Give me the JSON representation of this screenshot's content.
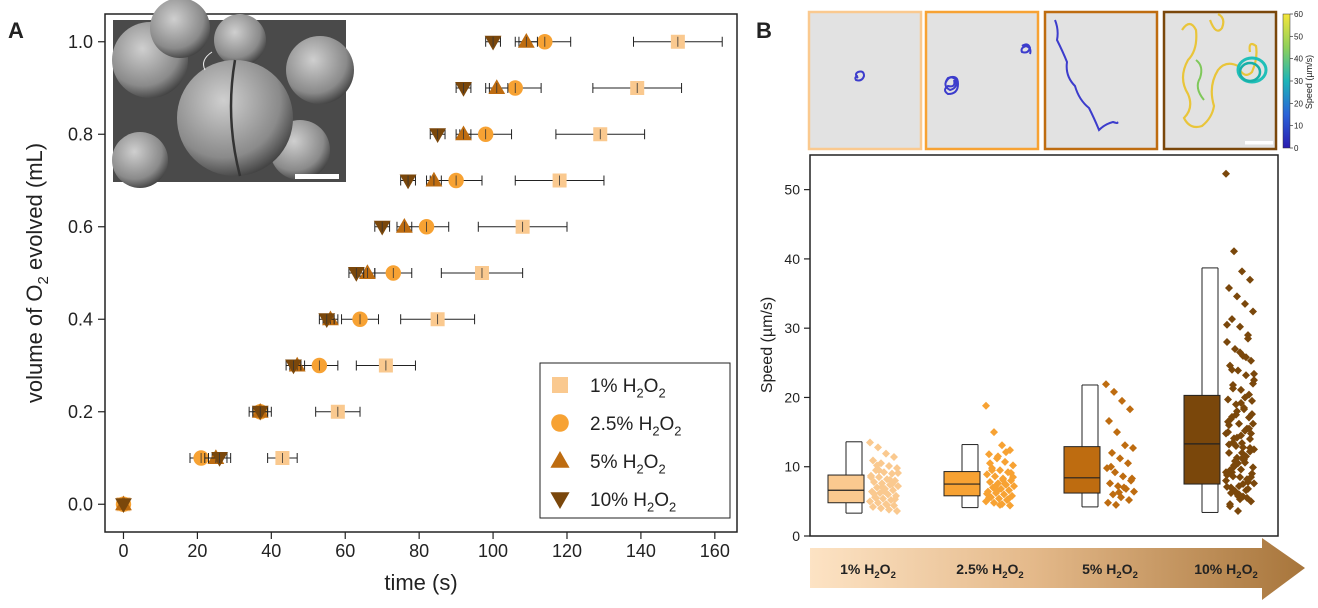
{
  "panel_a": {
    "letter": "A",
    "chart_data": {
      "type": "scatter",
      "xlabel": "time (s)",
      "ylabel": "volume of O2 evolved (mL)",
      "ylabel_parts": {
        "pre": "volume of O",
        "sub": "2",
        "post": " evolved (mL)"
      },
      "xlim": [
        -5,
        166
      ],
      "ylim": [
        -0.06,
        1.06
      ],
      "xticks": [
        0,
        20,
        40,
        60,
        80,
        100,
        120,
        140,
        160
      ],
      "yticks": [
        0.0,
        0.2,
        0.4,
        0.6,
        0.8,
        1.0
      ],
      "ytick_labels": [
        "0.0",
        "0.2",
        "0.4",
        "0.6",
        "0.8",
        "1.0"
      ],
      "legend_position": "bottom-right",
      "series": [
        {
          "name": "1% H2O2",
          "legend": {
            "pre": "1% H",
            "s1": "2",
            "mid": "O",
            "s2": "2"
          },
          "marker": "square",
          "color": "#FAC98F",
          "y": [
            0,
            0.1,
            0.2,
            0.3,
            0.4,
            0.5,
            0.6,
            0.7,
            0.8,
            0.9,
            1.0
          ],
          "x": [
            0,
            43,
            58,
            71,
            85,
            97,
            108,
            118,
            129,
            139,
            150
          ],
          "err": [
            0,
            4,
            6,
            8,
            10,
            11,
            12,
            12,
            12,
            12,
            12
          ]
        },
        {
          "name": "2.5% H2O2",
          "legend": {
            "pre": "2.5% H",
            "s1": "2",
            "mid": "O",
            "s2": "2"
          },
          "marker": "circle",
          "color": "#F7A233",
          "y": [
            0,
            0.1,
            0.2,
            0.3,
            0.4,
            0.5,
            0.6,
            0.7,
            0.8,
            0.9,
            1.0
          ],
          "x": [
            0,
            21,
            37,
            53,
            64,
            73,
            82,
            90,
            98,
            106,
            114
          ],
          "err": [
            0,
            3,
            3,
            5,
            5,
            5,
            6,
            7,
            7,
            7,
            7
          ]
        },
        {
          "name": "5% H2O2",
          "legend": {
            "pre": "5% H",
            "s1": "2",
            "mid": "O",
            "s2": "2"
          },
          "marker": "triangle-up",
          "color": "#BE6C10",
          "y": [
            0,
            0.1,
            0.2,
            0.3,
            0.4,
            0.5,
            0.6,
            0.7,
            0.8,
            0.9,
            1.0
          ],
          "x": [
            0,
            25,
            37,
            47,
            56,
            66,
            76,
            84,
            92,
            101,
            109
          ],
          "err": [
            0,
            3,
            2,
            2,
            2,
            2,
            2,
            2,
            2,
            3,
            3
          ]
        },
        {
          "name": "10% H2O2",
          "legend": {
            "pre": "10% H",
            "s1": "2",
            "mid": "O",
            "s2": "2"
          },
          "marker": "triangle-down",
          "color": "#7A470B",
          "y": [
            0,
            0.1,
            0.2,
            0.3,
            0.4,
            0.5,
            0.6,
            0.7,
            0.8,
            0.9,
            1.0
          ],
          "x": [
            0,
            26,
            37,
            46,
            55,
            63,
            70,
            77,
            85,
            92,
            100
          ],
          "err": [
            0,
            3,
            2,
            2,
            2,
            2,
            2,
            2,
            2,
            2,
            2
          ]
        }
      ]
    }
  },
  "panel_b": {
    "letter": "B",
    "colorbar": {
      "label": "Speed (µm/s)",
      "ticks": [
        0,
        10,
        20,
        30,
        40,
        50,
        60
      ]
    },
    "track_frame_colors": [
      "#FAC98F",
      "#F7A233",
      "#BE6C10",
      "#7A470B"
    ],
    "chart_data": {
      "type": "box",
      "ylabel": "Speed (µm/s)",
      "ylim": [
        0,
        55
      ],
      "yticks": [
        0,
        10,
        20,
        30,
        40,
        50
      ],
      "categories": [
        "1% H2O2",
        "2.5% H2O2",
        "5% H2O2",
        "10% H2O2"
      ],
      "arrow_labels": [
        {
          "pre": "1% H",
          "s1": "2",
          "mid": "O",
          "s2": "2"
        },
        {
          "pre": "2.5% H",
          "s1": "2",
          "mid": "O",
          "s2": "2"
        },
        {
          "pre": "5% H",
          "s1": "2",
          "mid": "O",
          "s2": "2"
        },
        {
          "pre": "10% H",
          "s1": "2",
          "mid": "O",
          "s2": "2"
        }
      ],
      "colors": [
        "#FAC98F",
        "#F7A233",
        "#BE6C10",
        "#7A470B"
      ],
      "boxes": [
        {
          "q1": 4.8,
          "median": 6.6,
          "q3": 8.8,
          "whisker_low": 3.3,
          "whisker_high": 13.6
        },
        {
          "q1": 5.8,
          "median": 7.5,
          "q3": 9.3,
          "whisker_low": 4.1,
          "whisker_high": 13.2
        },
        {
          "q1": 6.2,
          "median": 8.4,
          "q3": 12.9,
          "whisker_low": 4.2,
          "whisker_high": 21.8
        },
        {
          "q1": 7.5,
          "median": 13.3,
          "q3": 20.3,
          "whisker_low": 3.4,
          "whisker_high": 38.7
        }
      ],
      "points": [
        [
          13.5,
          12.8,
          11.9,
          11.4,
          10.9,
          10.5,
          10.1,
          9.8,
          9.5,
          9.2,
          9.0,
          8.7,
          8.5,
          8.2,
          8.0,
          7.8,
          7.6,
          7.4,
          7.2,
          7.0,
          6.8,
          6.6,
          6.4,
          6.2,
          6.0,
          5.8,
          5.6,
          5.4,
          5.2,
          5.0,
          4.8,
          4.6,
          4.4,
          4.2,
          4.0,
          3.8,
          3.6,
          5.5,
          6.5,
          7.5,
          8.5,
          9.5,
          4.5,
          5.3,
          6.1,
          7.1,
          8.1,
          9.1,
          10.2
        ],
        [
          18.8,
          15.0,
          13.1,
          12.4,
          11.8,
          11.2,
          10.7,
          10.2,
          9.8,
          9.5,
          9.2,
          8.9,
          8.6,
          8.3,
          8.0,
          7.8,
          7.6,
          7.4,
          7.2,
          7.0,
          6.8,
          6.6,
          6.4,
          6.2,
          6.0,
          5.8,
          5.6,
          5.4,
          5.2,
          5.0,
          4.8,
          4.6,
          4.4,
          5.5,
          6.5,
          7.5,
          8.5,
          9.5,
          4.5,
          5.3,
          6.1,
          7.1,
          8.1,
          9.1,
          10.5,
          11.5,
          12.1
        ],
        [
          21.9,
          20.8,
          19.5,
          18.3,
          16.6,
          15.0,
          13.1,
          12.7,
          12.0,
          11.2,
          10.5,
          9.8,
          9.2,
          8.6,
          8.0,
          7.6,
          7.2,
          6.8,
          6.4,
          6.0,
          5.6,
          5.2,
          4.8,
          4.5,
          7.0,
          8.3,
          10.0,
          6.3
        ],
        [
          52.3,
          41.1,
          38.2,
          37.0,
          35.8,
          34.6,
          33.5,
          32.4,
          31.3,
          30.2,
          29.0,
          28.0,
          27.0,
          26.0,
          25.3,
          24.6,
          23.9,
          23.2,
          22.5,
          21.8,
          21.1,
          20.4,
          19.7,
          19.0,
          18.3,
          17.6,
          16.9,
          16.2,
          15.5,
          14.8,
          14.1,
          13.4,
          12.7,
          12.0,
          11.3,
          10.6,
          9.9,
          9.2,
          8.5,
          7.8,
          7.1,
          6.4,
          5.7,
          5.0,
          4.3,
          3.6,
          25.8,
          23.4,
          21.3,
          19.2,
          17.1,
          15.0,
          13.0,
          11.0,
          9.0,
          7.0,
          6.0,
          5.5,
          8.0,
          10.0,
          12.0,
          14.0,
          16.0,
          18.0,
          20.0,
          22.0,
          24.0,
          26.5,
          28.5,
          30.5,
          6.5,
          7.5,
          8.5,
          9.5,
          10.5,
          11.5,
          12.5,
          13.5,
          14.5,
          15.5,
          16.5,
          17.5,
          18.5,
          19.5,
          6.2,
          7.2,
          8.2,
          9.2,
          10.2,
          11.2,
          12.2,
          13.2,
          14.2,
          15.2,
          16.2,
          17.2,
          5.3,
          6.8,
          8.8,
          10.8,
          12.8,
          14.8,
          4.6,
          5.8,
          6.6,
          7.6,
          8.6,
          9.6
        ]
      ]
    }
  }
}
